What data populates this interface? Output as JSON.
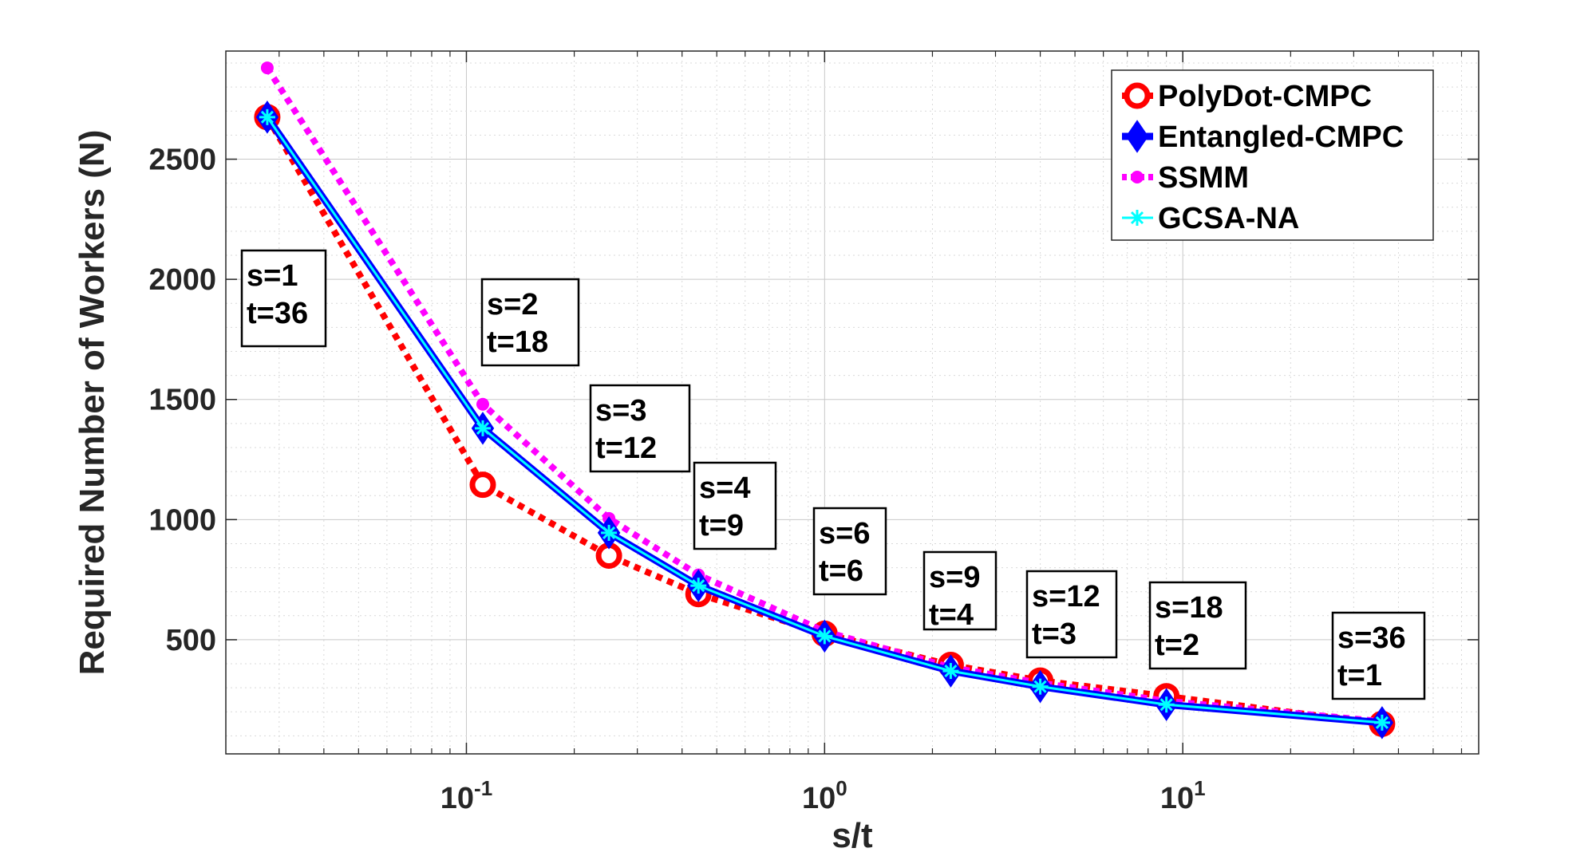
{
  "chart_data": {
    "type": "line",
    "xscale": "log",
    "xlabel": "s/t",
    "ylabel": "Required Number of Workers (N)",
    "xlim": [
      0.0213,
      67.0
    ],
    "ylim": [
      25,
      2950
    ],
    "x_ticks": [
      {
        "base": "10",
        "exp": "-1",
        "value": 0.1
      },
      {
        "base": "10",
        "exp": "0",
        "value": 1
      },
      {
        "base": "10",
        "exp": "1",
        "value": 10
      }
    ],
    "y_ticks": [
      {
        "label": "500",
        "value": 500
      },
      {
        "label": "1000",
        "value": 1000
      },
      {
        "label": "1500",
        "value": 1500
      },
      {
        "label": "2000",
        "value": 2000
      },
      {
        "label": "2500",
        "value": 2500
      }
    ],
    "grid": "minor",
    "x": [
      0.0278,
      0.1111,
      0.25,
      0.4444,
      1.0,
      2.25,
      4.0,
      9.0,
      36.0
    ],
    "series": [
      {
        "name": "PolyDot-CMPC",
        "color": "#ff0000",
        "style": "dotted",
        "marker": "circle",
        "values": [
          2675,
          1145,
          850,
          690,
          525,
          395,
          330,
          265,
          150
        ]
      },
      {
        "name": "Entangled-CMPC",
        "color": "#0000ff",
        "style": "solid",
        "marker": "diamond",
        "values": [
          2675,
          1380,
          945,
          725,
          515,
          370,
          305,
          230,
          155
        ]
      },
      {
        "name": "SSMM",
        "color": "#ff00ff",
        "style": "dotted",
        "marker": "dot",
        "values": [
          2880,
          1480,
          1005,
          770,
          535,
          385,
          320,
          245,
          160
        ]
      },
      {
        "name": "GCSA-NA",
        "color": "#00ffff",
        "style": "solid",
        "marker": "asterisk",
        "values": [
          2675,
          1380,
          945,
          725,
          515,
          370,
          305,
          230,
          155
        ]
      }
    ],
    "legend_position": "top-right",
    "annotations": [
      {
        "line1": "s=1",
        "line2": "t=36"
      },
      {
        "line1": "s=2",
        "line2": "t=18"
      },
      {
        "line1": "s=3",
        "line2": "t=12"
      },
      {
        "line1": "s=4",
        "line2": "t=9"
      },
      {
        "line1": "s=6",
        "line2": "t=6"
      },
      {
        "line1": "s=9",
        "line2": "t=4"
      },
      {
        "line1": "s=12",
        "line2": "t=3"
      },
      {
        "line1": "s=18",
        "line2": "t=2"
      },
      {
        "line1": "s=36",
        "line2": "t=1"
      }
    ]
  }
}
